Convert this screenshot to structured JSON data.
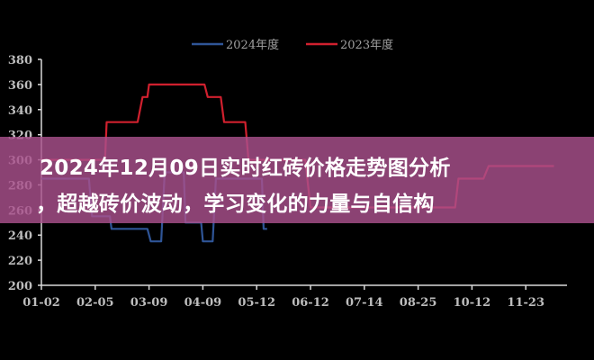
{
  "chart_data": {
    "type": "line",
    "title": "",
    "xlabel": "",
    "ylabel": "",
    "ylim": [
      200,
      380
    ],
    "yticks": [
      200,
      220,
      240,
      260,
      280,
      300,
      320,
      340,
      360,
      380
    ],
    "xticks": [
      "01-02",
      "02-05",
      "03-09",
      "04-09",
      "05-12",
      "06-12",
      "07-14",
      "08-25",
      "10-12",
      "11-23"
    ],
    "grid": false,
    "legend_position": "top",
    "series": [
      {
        "name": "2024年度",
        "color": "#2f5597",
        "points": [
          [
            "01-02",
            285
          ],
          [
            "02-01",
            285
          ],
          [
            "02-03",
            255
          ],
          [
            "02-14",
            255
          ],
          [
            "02-15",
            245
          ],
          [
            "03-08",
            245
          ],
          [
            "03-10",
            235
          ],
          [
            "03-16",
            235
          ],
          [
            "03-18",
            290
          ],
          [
            "03-29",
            290
          ],
          [
            "03-30",
            250
          ],
          [
            "04-08",
            250
          ],
          [
            "04-09",
            235
          ],
          [
            "04-15",
            235
          ],
          [
            "04-17",
            285
          ],
          [
            "05-15",
            285
          ],
          [
            "05-16",
            245
          ],
          [
            "05-18",
            245
          ]
        ]
      },
      {
        "name": "2023年度",
        "color": "#d0202e",
        "points": [
          [
            "01-02",
            300
          ],
          [
            "02-11",
            300
          ],
          [
            "02-12",
            330
          ],
          [
            "03-02",
            330
          ],
          [
            "03-05",
            350
          ],
          [
            "03-08",
            350
          ],
          [
            "03-09",
            360
          ],
          [
            "04-10",
            360
          ],
          [
            "04-12",
            350
          ],
          [
            "04-20",
            350
          ],
          [
            "04-22",
            330
          ],
          [
            "05-05",
            330
          ],
          [
            "05-07",
            300
          ],
          [
            "06-09",
            300
          ],
          [
            "06-12",
            262
          ],
          [
            "09-27",
            262
          ],
          [
            "09-30",
            285
          ],
          [
            "10-21",
            285
          ],
          [
            "10-25",
            295
          ],
          [
            "12-15",
            295
          ]
        ]
      }
    ]
  },
  "banner": {
    "line1": "2024年12月09日实时红砖价格走势图分析",
    "line2": "，超越砖价波动，学习变化的力量与自信构"
  }
}
